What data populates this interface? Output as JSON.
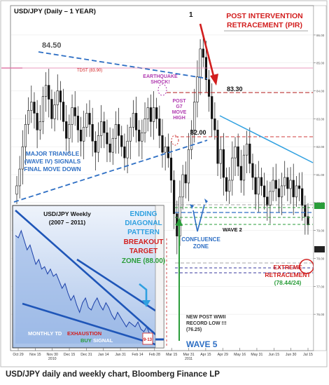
{
  "chart_data": [
    {
      "type": "candlestick",
      "title": "USD/JPY (Daily – 1 YEAR)",
      "x_ticks": [
        "Oct 29",
        "Nov 15",
        "Nov 30\n2010",
        "Dec 15",
        "Dec 31",
        "Jan 14",
        "Jan 31",
        "Feb 14",
        "Feb 28",
        "Mar 15",
        "Mar 31\n2011",
        "Apr 15",
        "Apr 29",
        "May 16",
        "May 31",
        "Jun 15",
        "Jun 30",
        "Jul 15"
      ],
      "y_ticks": [
        "86.00",
        "85.00",
        "84.00",
        "83.00",
        "82.00",
        "81.00",
        "80.00",
        "79.00",
        "78.00",
        "77.00",
        "76.00"
      ],
      "ylim": [
        75.2,
        86.5
      ],
      "close_series": [
        80.6,
        81.2,
        82.0,
        82.8,
        83.3,
        83.6,
        83.2,
        82.6,
        82.9,
        83.8,
        84.2,
        83.7,
        83.0,
        83.5,
        84.0,
        83.6,
        82.9,
        82.3,
        82.8,
        83.4,
        83.1,
        82.6,
        82.2,
        82.7,
        83.2,
        82.8,
        82.2,
        81.8,
        82.4,
        82.9,
        82.5,
        82.1,
        81.8,
        82.3,
        82.8,
        82.4,
        82.0,
        81.6,
        82.2,
        82.7,
        83.2,
        82.6,
        82.2,
        82.5,
        83.0,
        83.4,
        82.9,
        83.4,
        83.0,
        82.4,
        81.8,
        82.0,
        81.6,
        80.8,
        79.6,
        78.8,
        80.2,
        81.0,
        80.7,
        81.9,
        82.6,
        83.6,
        84.5,
        85.5,
        85.2,
        84.4,
        83.8,
        83.0,
        82.6,
        81.4,
        81.9,
        80.9,
        80.4,
        80.8,
        81.6,
        82.0,
        81.3,
        80.8,
        81.7,
        82.1,
        81.4,
        80.9,
        80.3,
        80.9,
        80.6,
        80.2,
        79.9,
        80.4,
        80.8,
        80.5,
        80.2,
        80.6,
        80.9,
        80.5,
        80.8,
        80.2,
        80.6,
        80.5,
        79.9,
        79.5,
        79.2
      ],
      "annotations": {
        "level_8450": "84.50",
        "high_1": "1",
        "pir_title": "POST INTERVENTION\nRETRACEMENT (PIR)",
        "tdst": "TDST (83.90)",
        "quake": "EARTHQUAKE\nSHOCK!",
        "g7": "POST\nG7\nMOVE\nHIGH",
        "lvl_8330": "83.30",
        "lvl_8200": "82.00",
        "triangle": "MAJOR TRIANGLE\n(WAVE IV) SIGNALS\nFINAL MOVE DOWN",
        "ending": "ENDING\nDIAGONAL\nPATTERN",
        "breakout": "BREAKOUT\nTARGET",
        "zone": "ZONE (88.00)",
        "wave2": "WAVE 2",
        "confluence": "CONFLUENCE\nZONE",
        "extreme1": "EXTREME",
        "extreme2": "RETRACEMENT",
        "extreme3": "(78.44/24)",
        "record": "NEW POST WWII\nRECORD LOW !!!\n(76.25)",
        "wave5": "WAVE 5"
      }
    },
    {
      "type": "line",
      "title": "USD/JPY Weekly\n(2007 – 2011)",
      "values": [
        120,
        119,
        122,
        118,
        114,
        116,
        112,
        108,
        110,
        106,
        107,
        104,
        106,
        103,
        104,
        101,
        98,
        100,
        96,
        93,
        95,
        91,
        88,
        92,
        94,
        90,
        89,
        92,
        94,
        91,
        89,
        92,
        90,
        87,
        85,
        88,
        86,
        84,
        82,
        84,
        83,
        82,
        84,
        81,
        80,
        82,
        79,
        77
      ],
      "annotation_1": "MONTHLY TD",
      "annotation_2": "EXHAUSTION",
      "annotation_3": "BUY",
      "annotation_4": "SIGNAL",
      "annotation_5": "9-13"
    }
  ],
  "caption": "USD/JPY daily and weekly chart, Bloomberg Finance LP"
}
